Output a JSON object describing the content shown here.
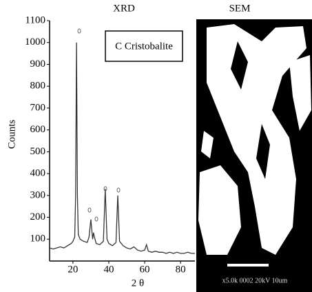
{
  "chart_data": {
    "type": "line",
    "title": "XRD",
    "xlabel": "2 θ",
    "ylabel": "Counts",
    "annotation": "C Cristobalite",
    "x": [
      7,
      9,
      11,
      13,
      15,
      17,
      19,
      20,
      21,
      21.5,
      22,
      22.5,
      23,
      24,
      26,
      28,
      29,
      30,
      31,
      31.5,
      32,
      33,
      35,
      37,
      38,
      39,
      40,
      42,
      44,
      45,
      46,
      48,
      50,
      52,
      54,
      56,
      58,
      60,
      61,
      62,
      64,
      66,
      68,
      70,
      72,
      74,
      76,
      78,
      80,
      82,
      84,
      86,
      88
    ],
    "values": [
      60,
      55,
      60,
      65,
      60,
      70,
      80,
      90,
      110,
      300,
      1000,
      300,
      120,
      100,
      90,
      85,
      110,
      190,
      100,
      130,
      110,
      80,
      75,
      90,
      330,
      100,
      80,
      70,
      85,
      300,
      90,
      70,
      60,
      55,
      65,
      50,
      45,
      50,
      75,
      45,
      40,
      45,
      40,
      40,
      35,
      40,
      35,
      40,
      35,
      35,
      40,
      35,
      35
    ],
    "color": "#333333",
    "xlim": [
      7,
      88
    ],
    "ylim": [
      0,
      1100
    ],
    "xticks": [
      20,
      40,
      60,
      80
    ],
    "yticks": [
      100,
      200,
      300,
      400,
      500,
      600,
      700,
      800,
      900,
      1000,
      1100
    ]
  },
  "sem": {
    "title": "SEM",
    "caption": "x5.0k 0002 20kV 10um"
  }
}
